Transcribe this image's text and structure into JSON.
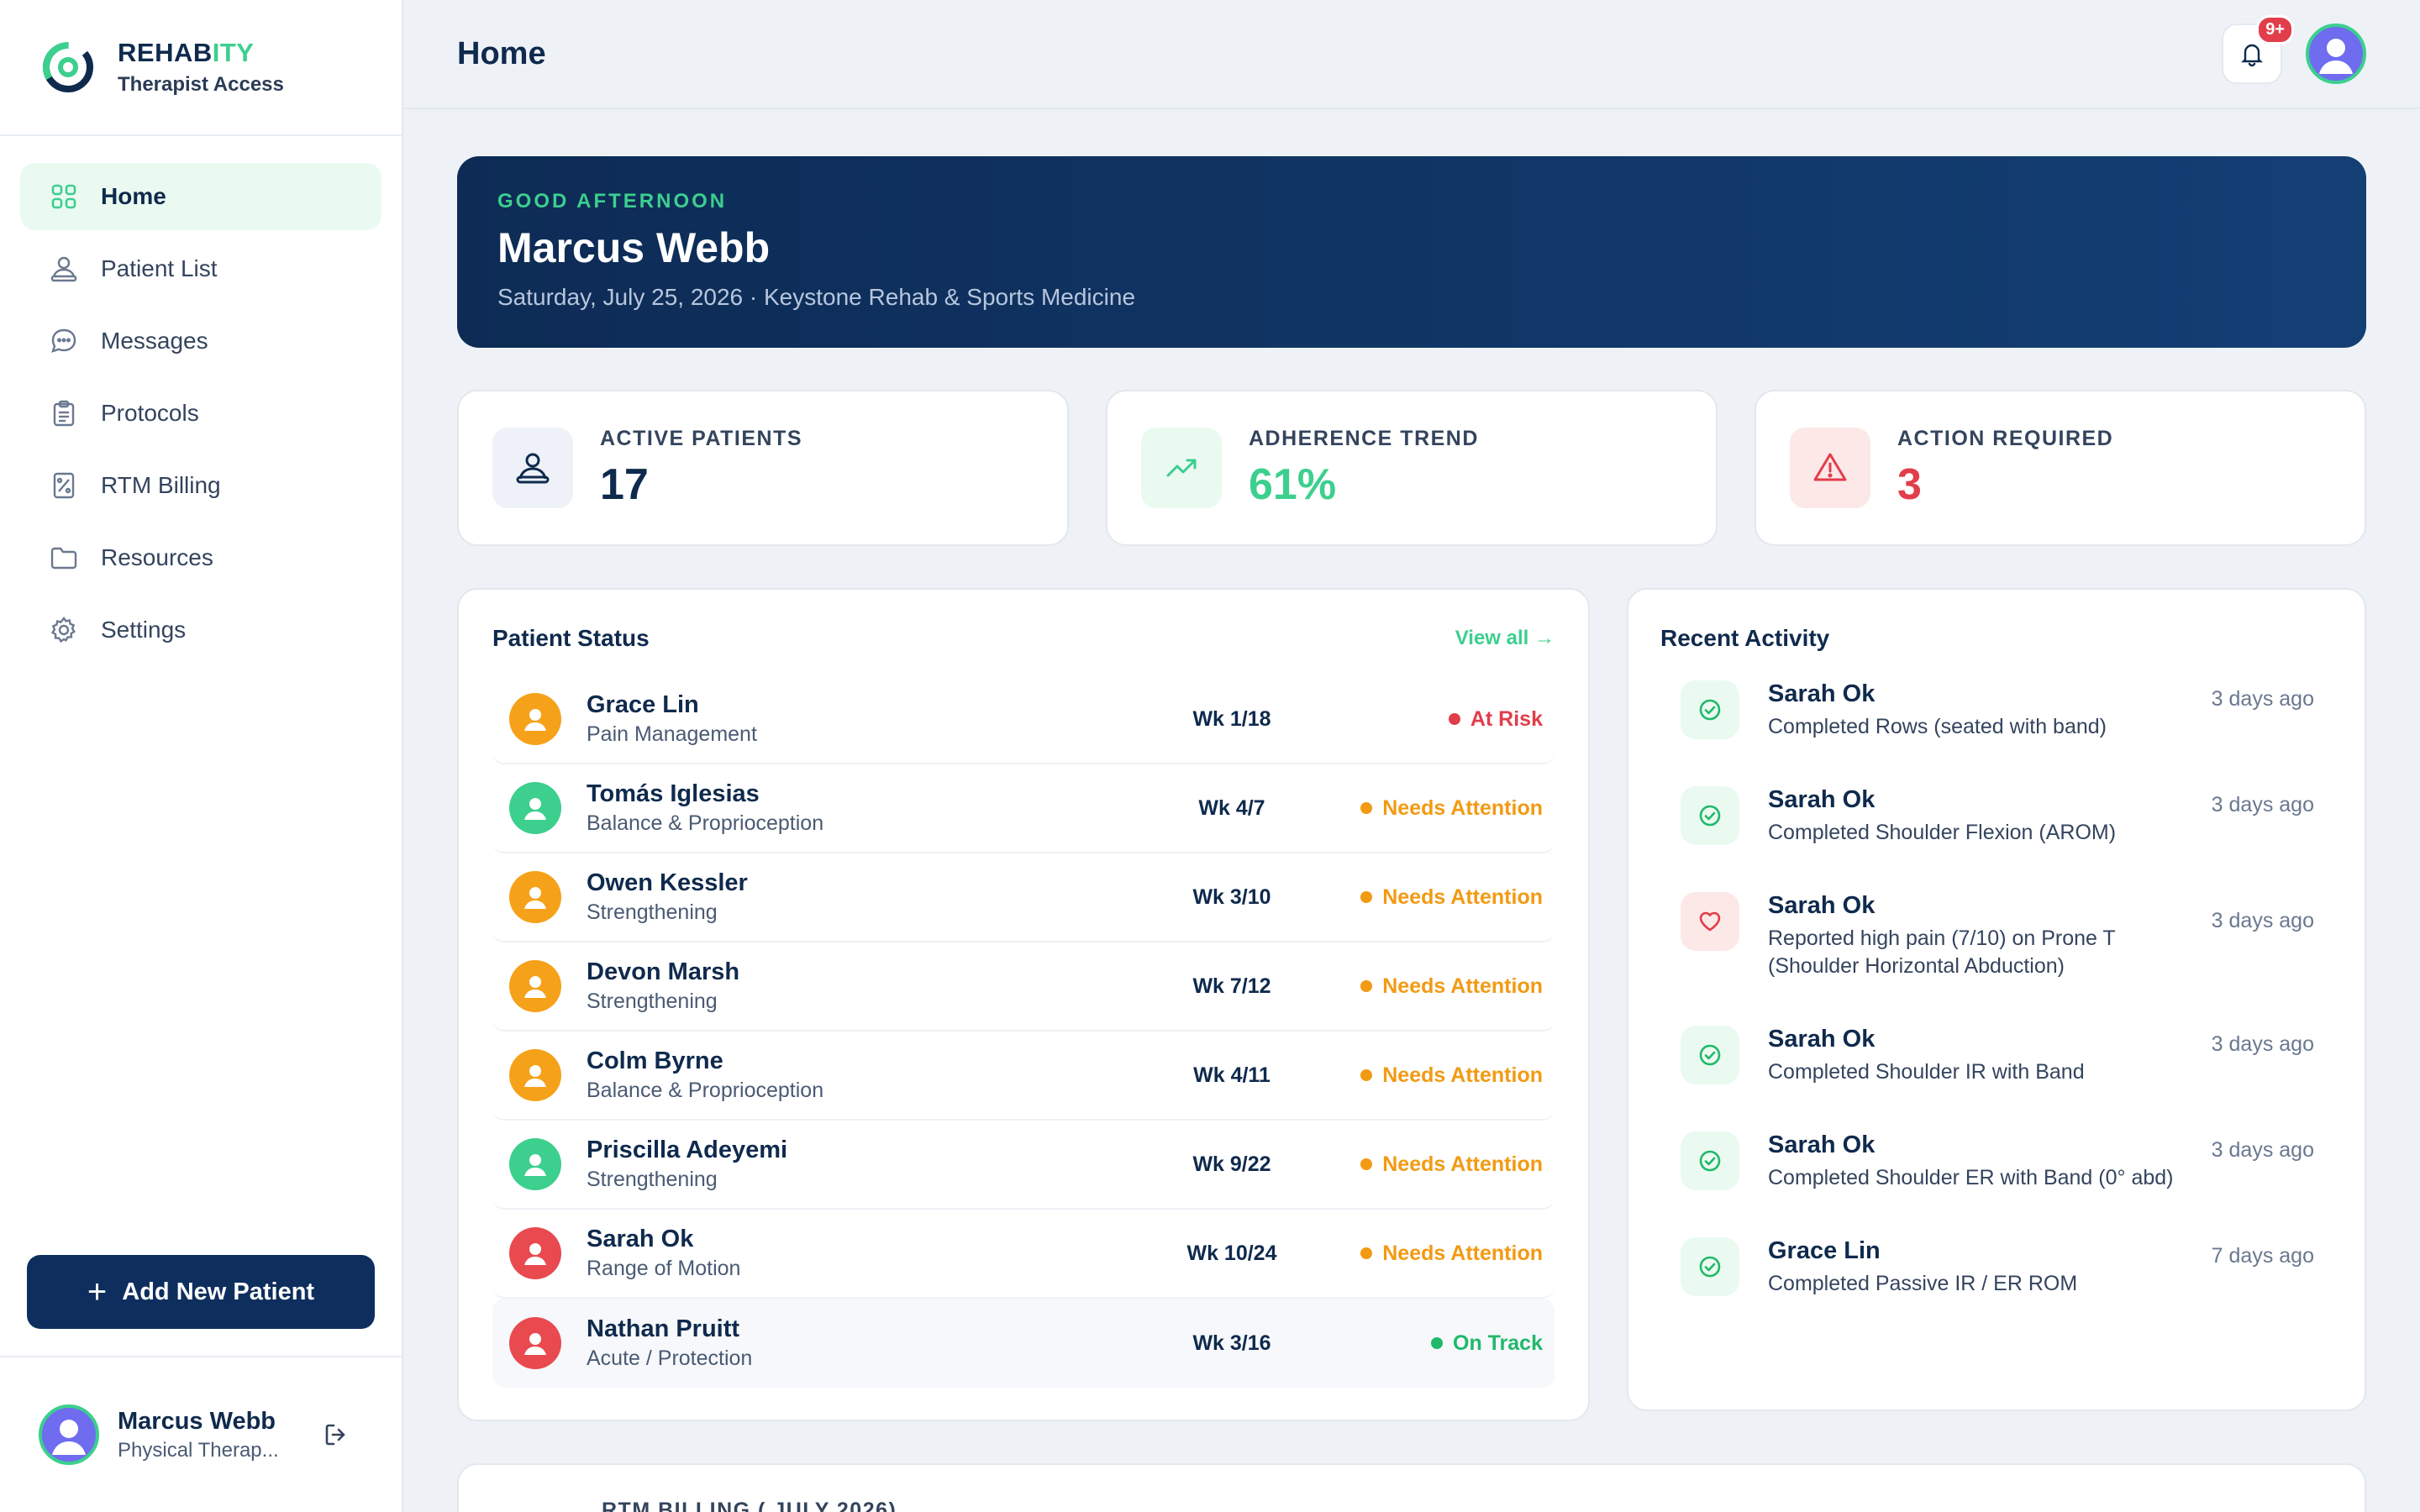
{
  "brand": {
    "name_main": "REHAB",
    "name_accent": "ITY",
    "subtitle": "Therapist Access"
  },
  "nav": [
    {
      "label": "Home",
      "icon": "grid-icon",
      "active": true
    },
    {
      "label": "Patient List",
      "icon": "person-icon"
    },
    {
      "label": "Messages",
      "icon": "chat-icon"
    },
    {
      "label": "Protocols",
      "icon": "clipboard-icon"
    },
    {
      "label": "RTM Billing",
      "icon": "receipt-icon"
    },
    {
      "label": "Resources",
      "icon": "folder-icon"
    },
    {
      "label": "Settings",
      "icon": "gear-icon"
    }
  ],
  "add_patient_label": "Add New Patient",
  "user": {
    "name": "Marcus Webb",
    "role": "Physical Therap..."
  },
  "header": {
    "title": "Home",
    "notifications": "9+"
  },
  "hero": {
    "greeting": "GOOD AFTERNOON",
    "name": "Marcus Webb",
    "subtitle": "Saturday, July 25, 2026 · Keystone Rehab & Sports Medicine"
  },
  "stats": [
    {
      "label": "ACTIVE PATIENTS",
      "value": "17",
      "color": "#0f2a4d"
    },
    {
      "label": "ADHERENCE TREND",
      "value": "61%",
      "color": "#3ccf8e"
    },
    {
      "label": "ACTION REQUIRED",
      "value": "3",
      "color": "#e23d4a"
    }
  ],
  "patient_status": {
    "title": "Patient Status",
    "view_all": "View all →",
    "patients": [
      {
        "name": "Grace Lin",
        "category": "Pain Management",
        "week": "Wk 1/18",
        "status": "At Risk",
        "status_color": "#e23d4a",
        "avatar_color": "#f5a11a"
      },
      {
        "name": "Tomás Iglesias",
        "category": "Balance & Proprioception",
        "week": "Wk 4/7",
        "status": "Needs Attention",
        "status_color": "#f29a13",
        "avatar_color": "#3ccf8e"
      },
      {
        "name": "Owen Kessler",
        "category": "Strengthening",
        "week": "Wk 3/10",
        "status": "Needs Attention",
        "status_color": "#f29a13",
        "avatar_color": "#f5a11a"
      },
      {
        "name": "Devon Marsh",
        "category": "Strengthening",
        "week": "Wk 7/12",
        "status": "Needs Attention",
        "status_color": "#f29a13",
        "avatar_color": "#f5a11a"
      },
      {
        "name": "Colm Byrne",
        "category": "Balance & Proprioception",
        "week": "Wk 4/11",
        "status": "Needs Attention",
        "status_color": "#f29a13",
        "avatar_color": "#f5a11a"
      },
      {
        "name": "Priscilla Adeyemi",
        "category": "Strengthening",
        "week": "Wk 9/22",
        "status": "Needs Attention",
        "status_color": "#f29a13",
        "avatar_color": "#3ccf8e"
      },
      {
        "name": "Sarah Ok",
        "category": "Range of Motion",
        "week": "Wk 10/24",
        "status": "Needs Attention",
        "status_color": "#f29a13",
        "avatar_color": "#e84a4f"
      },
      {
        "name": "Nathan Pruitt",
        "category": "Acute / Protection",
        "week": "Wk 3/16",
        "status": "On Track",
        "status_color": "#21b86b",
        "avatar_color": "#e84a4f"
      }
    ]
  },
  "recent_activity": {
    "title": "Recent Activity",
    "items": [
      {
        "name": "Sarah Ok",
        "description": "Completed Rows (seated with band)",
        "time": "3 days ago",
        "type": "check"
      },
      {
        "name": "Sarah Ok",
        "description": "Completed Shoulder Flexion (AROM)",
        "time": "3 days ago",
        "type": "check"
      },
      {
        "name": "Sarah Ok",
        "description": "Reported high pain (7/10) on Prone T (Shoulder Horizontal Abduction)",
        "time": "3 days ago",
        "type": "heart"
      },
      {
        "name": "Sarah Ok",
        "description": "Completed Shoulder IR with Band",
        "time": "3 days ago",
        "type": "check"
      },
      {
        "name": "Sarah Ok",
        "description": "Completed Shoulder ER with Band (0° abd)",
        "time": "3 days ago",
        "type": "check"
      },
      {
        "name": "Grace Lin",
        "description": "Completed Passive IR / ER ROM",
        "time": "7 days ago",
        "type": "check"
      }
    ]
  },
  "billing": {
    "title": "RTM BILLING ( JULY 2026)"
  }
}
